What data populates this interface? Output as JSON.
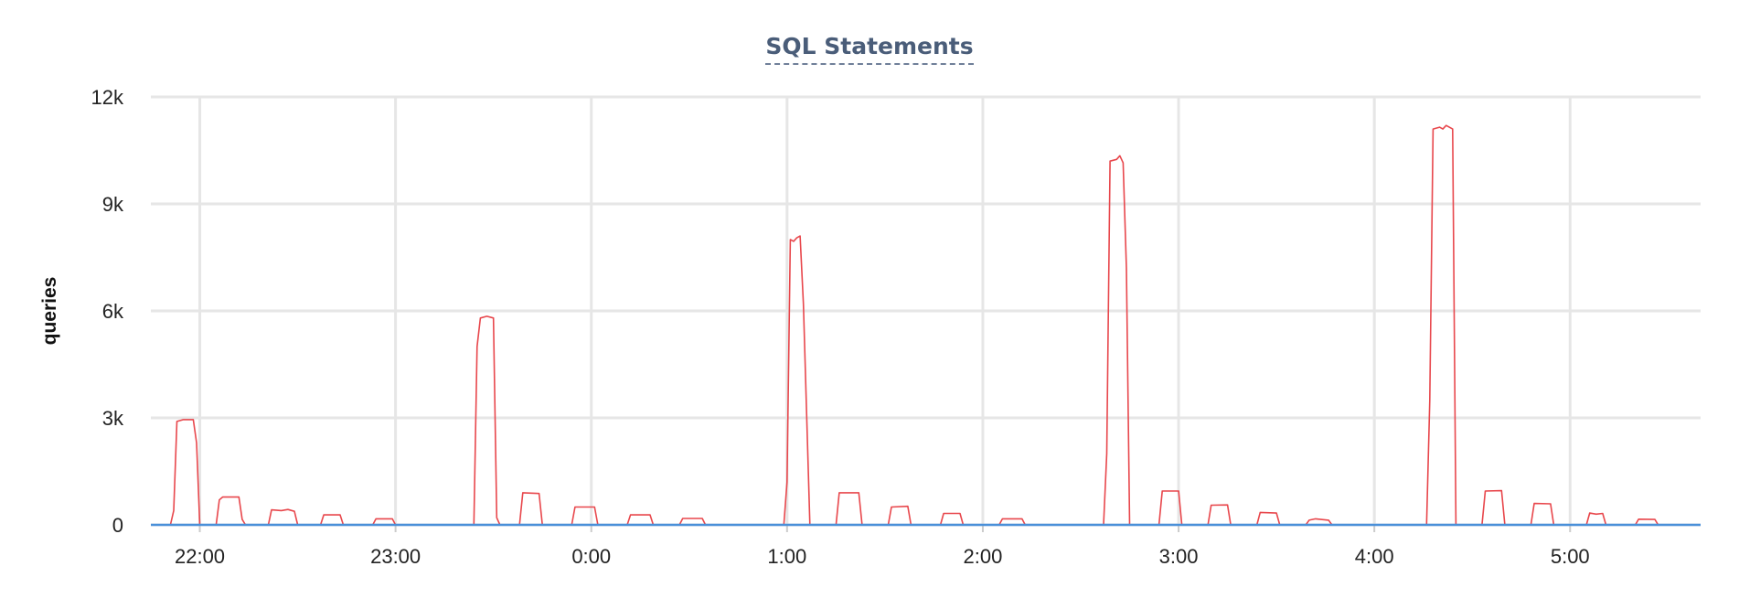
{
  "chart_data": {
    "type": "line",
    "title": "SQL Statements",
    "ylabel": "queries",
    "xlabel": "",
    "ylim": [
      0,
      12000
    ],
    "yticks": [
      0,
      3000,
      6000,
      9000,
      12000
    ],
    "ytick_labels": [
      "0",
      "3k",
      "6k",
      "9k",
      "12k"
    ],
    "xlim": [
      "21:45",
      "5:40"
    ],
    "xticks": [
      "22:00",
      "23:00",
      "0:00",
      "1:00",
      "2:00",
      "3:00",
      "4:00",
      "5:00"
    ],
    "grid": true,
    "series": [
      {
        "color": "#e8474c",
        "points": [
          [
            "21:45",
            0
          ],
          [
            "21:51",
            0
          ],
          [
            "21:52",
            400
          ],
          [
            "21:53",
            2900
          ],
          [
            "21:55",
            2950
          ],
          [
            "21:58",
            2950
          ],
          [
            "21:59",
            2300
          ],
          [
            "22:00",
            0
          ],
          [
            "22:05",
            0
          ],
          [
            "22:06",
            700
          ],
          [
            "22:07",
            780
          ],
          [
            "22:12",
            780
          ],
          [
            "22:13",
            150
          ],
          [
            "22:14",
            0
          ],
          [
            "22:21",
            0
          ],
          [
            "22:22",
            420
          ],
          [
            "22:25",
            400
          ],
          [
            "22:27",
            430
          ],
          [
            "22:29",
            380
          ],
          [
            "22:30",
            0
          ],
          [
            "22:37",
            0
          ],
          [
            "22:38",
            280
          ],
          [
            "22:43",
            280
          ],
          [
            "22:44",
            0
          ],
          [
            "22:53",
            0
          ],
          [
            "22:54",
            170
          ],
          [
            "22:59",
            170
          ],
          [
            "23:00",
            0
          ],
          [
            "23:24",
            0
          ],
          [
            "23:25",
            5000
          ],
          [
            "23:26",
            5800
          ],
          [
            "23:28",
            5850
          ],
          [
            "23:30",
            5800
          ],
          [
            "23:31",
            200
          ],
          [
            "23:32",
            0
          ],
          [
            "23:38",
            0
          ],
          [
            "23:39",
            900
          ],
          [
            "23:44",
            880
          ],
          [
            "23:45",
            0
          ],
          [
            "23:54",
            0
          ],
          [
            "23:55",
            500
          ],
          [
            "24:01",
            500
          ],
          [
            "24:02",
            0
          ],
          [
            "24:11",
            0
          ],
          [
            "24:12",
            280
          ],
          [
            "24:18",
            280
          ],
          [
            "24:19",
            0
          ],
          [
            "24:27",
            0
          ],
          [
            "24:28",
            180
          ],
          [
            "24:34",
            180
          ],
          [
            "24:35",
            0
          ],
          [
            "24:59",
            0
          ],
          [
            "25:00",
            1200
          ],
          [
            "25:01",
            8000
          ],
          [
            "25:02",
            7950
          ],
          [
            "25:03",
            8050
          ],
          [
            "25:04",
            8100
          ],
          [
            "25:05",
            6200
          ],
          [
            "25:07",
            0
          ],
          [
            "25:15",
            0
          ],
          [
            "25:16",
            900
          ],
          [
            "25:22",
            900
          ],
          [
            "25:23",
            0
          ],
          [
            "25:31",
            0
          ],
          [
            "25:32",
            500
          ],
          [
            "25:37",
            520
          ],
          [
            "25:38",
            0
          ],
          [
            "25:47",
            0
          ],
          [
            "25:48",
            320
          ],
          [
            "25:53",
            320
          ],
          [
            "25:54",
            0
          ],
          [
            "26:05",
            0
          ],
          [
            "26:06",
            170
          ],
          [
            "26:12",
            170
          ],
          [
            "26:13",
            0
          ],
          [
            "26:37",
            0
          ],
          [
            "26:38",
            2000
          ],
          [
            "26:39",
            10200
          ],
          [
            "26:41",
            10250
          ],
          [
            "26:42",
            10350
          ],
          [
            "26:43",
            10150
          ],
          [
            "26:44",
            7200
          ],
          [
            "26:45",
            0
          ],
          [
            "26:54",
            0
          ],
          [
            "26:55",
            950
          ],
          [
            "27:00",
            950
          ],
          [
            "27:01",
            0
          ],
          [
            "27:09",
            0
          ],
          [
            "27:10",
            550
          ],
          [
            "27:15",
            560
          ],
          [
            "27:16",
            0
          ],
          [
            "27:24",
            0
          ],
          [
            "27:25",
            350
          ],
          [
            "27:30",
            330
          ],
          [
            "27:31",
            0
          ],
          [
            "27:39",
            0
          ],
          [
            "27:40",
            130
          ],
          [
            "27:42",
            170
          ],
          [
            "27:46",
            130
          ],
          [
            "27:47",
            0
          ],
          [
            "28:16",
            0
          ],
          [
            "28:17",
            3500
          ],
          [
            "28:18",
            11100
          ],
          [
            "28:20",
            11150
          ],
          [
            "28:21",
            11100
          ],
          [
            "28:22",
            11200
          ],
          [
            "28:24",
            11100
          ],
          [
            "28:25",
            0
          ],
          [
            "28:33",
            0
          ],
          [
            "28:34",
            950
          ],
          [
            "28:39",
            960
          ],
          [
            "28:40",
            0
          ],
          [
            "28:48",
            0
          ],
          [
            "28:49",
            600
          ],
          [
            "28:54",
            590
          ],
          [
            "28:55",
            0
          ],
          [
            "29:05",
            0
          ],
          [
            "29:06",
            330
          ],
          [
            "29:08",
            300
          ],
          [
            "29:10",
            320
          ],
          [
            "29:11",
            0
          ],
          [
            "29:20",
            0
          ],
          [
            "29:21",
            160
          ],
          [
            "29:26",
            150
          ],
          [
            "29:27",
            0
          ],
          [
            "29:40",
            0
          ]
        ]
      },
      {
        "color": "#4a90d9",
        "points": [
          [
            "21:45",
            0
          ],
          [
            "29:40",
            0
          ]
        ]
      }
    ]
  }
}
